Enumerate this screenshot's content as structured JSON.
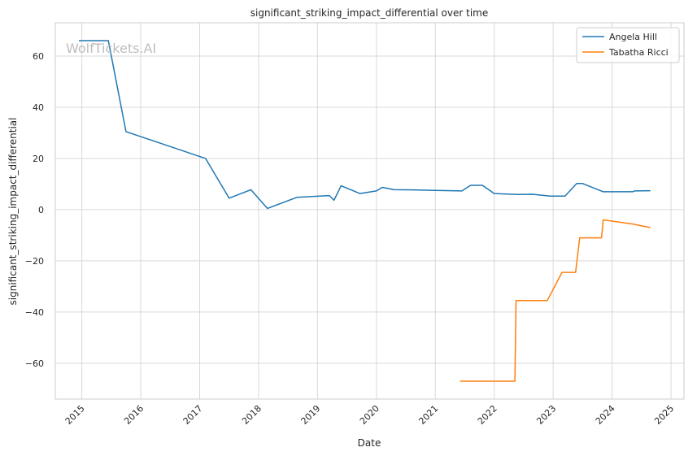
{
  "chart_data": {
    "type": "line",
    "title": "significant_striking_impact_differential over time",
    "xlabel": "Date",
    "ylabel": "significant_striking_impact_differential",
    "watermark": "WolfTickets.AI",
    "x_ticks": [
      "2015",
      "2016",
      "2017",
      "2018",
      "2019",
      "2020",
      "2021",
      "2022",
      "2023",
      "2024",
      "2025"
    ],
    "y_ticks": [
      60,
      40,
      20,
      0,
      -20,
      -40,
      -60
    ],
    "xlim": [
      2014.55,
      2025.22
    ],
    "ylim": [
      -74,
      73
    ],
    "grid": true,
    "legend_position": "top-right",
    "series": [
      {
        "name": "Angela Hill",
        "color": "#1f77b4",
        "x": [
          2014.95,
          2015.45,
          2015.75,
          2017.1,
          2017.5,
          2017.87,
          2018.15,
          2018.65,
          2019.2,
          2019.28,
          2019.4,
          2019.72,
          2020.0,
          2020.1,
          2020.3,
          2020.7,
          2021.0,
          2021.45,
          2021.6,
          2021.8,
          2022.0,
          2022.4,
          2022.65,
          2022.95,
          2023.2,
          2023.4,
          2023.5,
          2023.85,
          2024.35,
          2024.38,
          2024.65
        ],
        "y": [
          66,
          66,
          30.5,
          20,
          4.5,
          7.8,
          0.5,
          4.8,
          5.5,
          3.7,
          9.3,
          6.3,
          7.3,
          8.7,
          7.8,
          7.7,
          7.5,
          7.3,
          9.5,
          9.5,
          6.3,
          5.9,
          6,
          5.3,
          5.3,
          10.2,
          10.2,
          7,
          7,
          7.3,
          7.4
        ]
      },
      {
        "name": "Tabatha Ricci",
        "color": "#ff7f0e",
        "x": [
          2021.42,
          2022.35,
          2022.37,
          2022.9,
          2023.15,
          2023.38,
          2023.45,
          2023.82,
          2023.85,
          2024.35,
          2024.65
        ],
        "y": [
          -67,
          -67,
          -35.5,
          -35.5,
          -24.5,
          -24.5,
          -11,
          -11,
          -4,
          -5.6,
          -7
        ]
      }
    ]
  }
}
